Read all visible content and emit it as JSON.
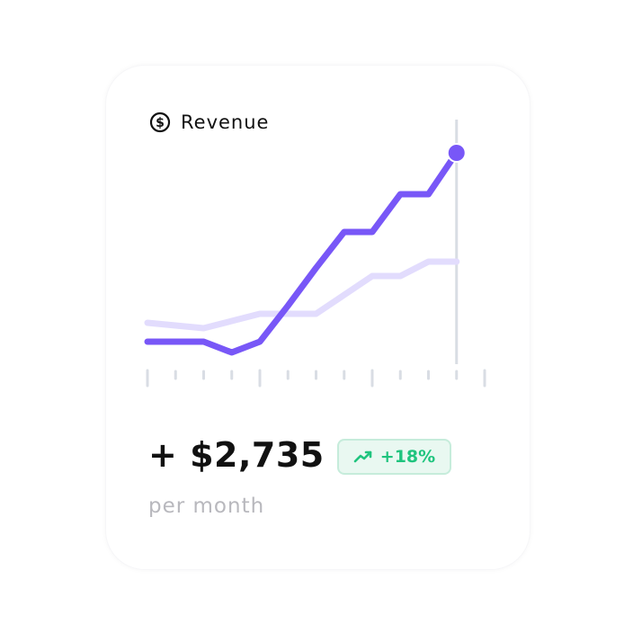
{
  "card": {
    "title": "Revenue",
    "title_icon": "dollar-circle-icon",
    "amount": "+ $2,735",
    "period": "per month",
    "change": {
      "label": "+18%",
      "icon": "trending-up-icon",
      "color": "#1fc47e"
    }
  },
  "chart_data": {
    "type": "line",
    "x": [
      0,
      1,
      2,
      3,
      4,
      5,
      6,
      7,
      8,
      9,
      10,
      11
    ],
    "grid": false,
    "series": [
      {
        "values": [
          10,
          10,
          10,
          4,
          10,
          30,
          51,
          71,
          71,
          92,
          92,
          115
        ],
        "color": "#7857f7",
        "highlight_last": true
      },
      {
        "values": [
          20.5,
          19,
          17.5,
          21.5,
          25.5,
          25.5,
          25.5,
          36,
          46.5,
          46.5,
          54.5,
          54.5
        ],
        "color": "#e2dcfd"
      }
    ],
    "x_ticks": 13,
    "marker_index": 11
  }
}
